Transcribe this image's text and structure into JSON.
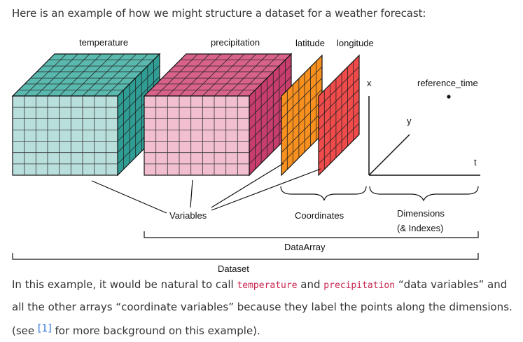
{
  "intro_text": "Here is an example of how we might structure a dataset for a weather forecast:",
  "diagram": {
    "labels": {
      "temperature": "temperature",
      "precipitation": "precipitation",
      "latitude": "latitude",
      "longitude": "longitude",
      "x": "x",
      "reference_time": "reference_time",
      "y": "y",
      "t": "t",
      "variables": "Variables",
      "coordinates": "Coordinates",
      "dimensions": "Dimensions",
      "indexes": "(& Indexes)",
      "dataarray": "DataArray",
      "dataset": "Dataset"
    },
    "colors": {
      "temperature_front": "#b9dfdc",
      "temperature_top": "#5ab9ae",
      "temperature_side": "#2f9d93",
      "precipitation_front": "#f2bfd0",
      "precipitation_top": "#d9628a",
      "precipitation_side": "#c73d6d",
      "latitude": "#f7901e",
      "longitude": "#f04b4b"
    }
  },
  "paragraph": {
    "p1": "In this example, it would be natural to call ",
    "code1": "temperature",
    "p2": " and ",
    "code2": "precipitation",
    "p3": " “data variables” and all the other arrays “coordinate variables” because they label the points along the dimensions. (see ",
    "ref": "[1]",
    "p4": " for more background on this example)."
  }
}
